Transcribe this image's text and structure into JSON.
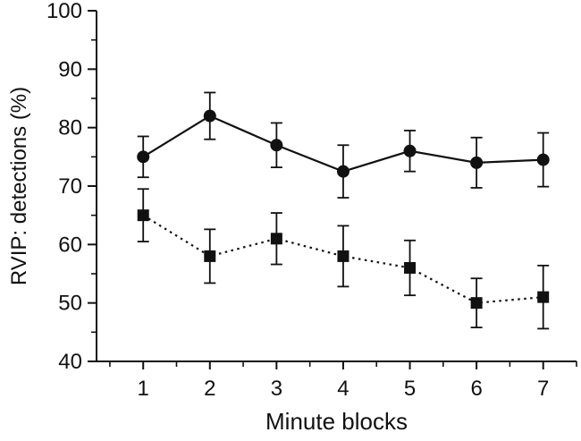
{
  "figure": {
    "background": "#ffffff",
    "axis_color": "#111111"
  },
  "chart_data": {
    "type": "line",
    "title": "",
    "xlabel": "Minute blocks",
    "ylabel": "RVIP: detections (%)",
    "x": [
      1,
      2,
      3,
      4,
      5,
      6,
      7
    ],
    "xlim": [
      0.3,
      7.5
    ],
    "ylim": [
      40,
      100
    ],
    "yticks": [
      40,
      50,
      60,
      70,
      80,
      90,
      100
    ],
    "y_minor_step": 5,
    "x_minor_step": 0.5,
    "grid": false,
    "legend": null,
    "series": [
      {
        "name": "solid-circle-series",
        "marker": "circle",
        "line_style": "solid",
        "color": "#111111",
        "values": [
          75,
          82,
          77,
          72.5,
          76,
          74,
          74.5
        ],
        "errors": [
          3.5,
          4,
          3.8,
          4.5,
          3.5,
          4.3,
          4.6
        ]
      },
      {
        "name": "dotted-square-series",
        "marker": "square",
        "line_style": "dotted",
        "color": "#111111",
        "values": [
          65,
          58,
          61,
          58,
          56,
          50,
          51
        ],
        "errors": [
          4.5,
          4.6,
          4.4,
          5.2,
          4.7,
          4.2,
          5.4
        ]
      }
    ]
  }
}
